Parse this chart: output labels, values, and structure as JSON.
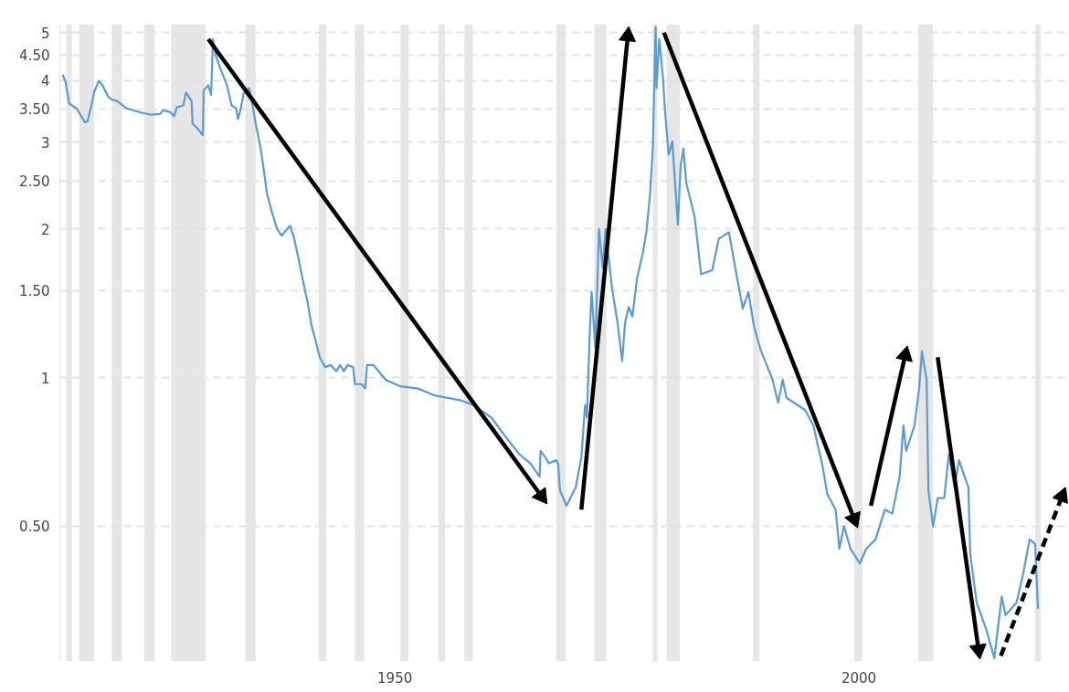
{
  "chart_data": {
    "type": "line",
    "log": "y",
    "grid": "y",
    "line_style": "solid",
    "marker": "none",
    "xlim": [
      1913.9,
      2022.5
    ],
    "ylim": [
      0.266,
      5.2
    ],
    "xticks": [
      1950,
      2000
    ],
    "yticks": [
      {
        "value": 0.5,
        "label": "0.50"
      },
      1,
      {
        "value": 1.5,
        "label": "1.50"
      },
      2,
      {
        "value": 2.5,
        "label": "2.50"
      },
      3,
      {
        "value": 3.5,
        "label": "3.50"
      },
      4,
      {
        "value": 4.5,
        "label": "4.50"
      },
      5
    ],
    "x": [
      1914.2,
      1914.5,
      1914.9,
      1915.2,
      1915.7,
      1916.1,
      1916.6,
      1916.9,
      1917.3,
      1917.6,
      1918.1,
      1918.5,
      1919.1,
      1919.5,
      1920.1,
      1921.1,
      1921.8,
      1922.7,
      1923.7,
      1924.7,
      1925.0,
      1925.8,
      1926.2,
      1926.5,
      1927.2,
      1927.5,
      1928.1,
      1928.2,
      1928.7,
      1929.3,
      1929.4,
      1929.9,
      1930.2,
      1930.4,
      1930.7,
      1931.3,
      1931.9,
      1932.4,
      1932.9,
      1933.1,
      1933.4,
      1933.7,
      1934.3,
      1934.6,
      1935.0,
      1935.5,
      1935.8,
      1936.2,
      1936.7,
      1937.3,
      1937.8,
      1938.3,
      1938.7,
      1939.1,
      1939.6,
      1940.1,
      1940.6,
      1941.0,
      1941.5,
      1941.9,
      1942.5,
      1943.1,
      1943.7,
      1944.1,
      1944.5,
      1944.9,
      1945.5,
      1945.7,
      1946.4,
      1946.8,
      1947.0,
      1947.7,
      1949.0,
      1950.6,
      1952.5,
      1954.3,
      1957.0,
      1958.5,
      1960.4,
      1961.9,
      1963.4,
      1964.6,
      1965.6,
      1965.7,
      1966.2,
      1966.6,
      1967.4,
      1967.6,
      1967.8,
      1968.5,
      1969.5,
      1970.1,
      1970.5,
      1970.7,
      1971.0,
      1971.2,
      1971.6,
      1972.0,
      1972.4,
      1972.7,
      1973.4,
      1974.0,
      1974.5,
      1974.8,
      1975.2,
      1975.6,
      1976.1,
      1976.7,
      1977.1,
      1977.5,
      1977.8,
      1978.1,
      1978.2,
      1978.5,
      1978.9,
      1979.1,
      1979.5,
      1979.9,
      1980.5,
      1980.8,
      1981.1,
      1981.4,
      1982.3,
      1983.0,
      1984.2,
      1984.9,
      1986.0,
      1986.8,
      1987.5,
      1988.1,
      1988.7,
      1989.4,
      1990.7,
      1991.3,
      1991.8,
      1992.2,
      1994.2,
      1995.1,
      1996.1,
      1996.6,
      1997.5,
      1997.9,
      1998.4,
      1999.1,
      2000.1,
      2000.8,
      2001.8,
      2002.8,
      2003.6,
      2004.4,
      2004.8,
      2005.1,
      2006.0,
      2006.5,
      2006.8,
      2007.3,
      2007.5,
      2008.0,
      2008.5,
      2009.2,
      2009.7,
      2010.3,
      2010.8,
      2011.4,
      2011.8,
      2012.0,
      2012.7,
      2013.7,
      2014.6,
      2015.4,
      2015.8,
      2017.0,
      2017.7,
      2018.4,
      2019.0,
      2019.3
    ],
    "series": [
      {
        "color": "#5b9bd5",
        "values": [
          4.11,
          3.99,
          3.59,
          3.56,
          3.51,
          3.41,
          3.29,
          3.31,
          3.56,
          3.79,
          3.99,
          3.91,
          3.71,
          3.66,
          3.63,
          3.51,
          3.48,
          3.44,
          3.41,
          3.42,
          3.48,
          3.45,
          3.38,
          3.53,
          3.56,
          3.78,
          3.63,
          3.27,
          3.2,
          3.1,
          3.82,
          3.91,
          3.74,
          4.85,
          4.49,
          4.18,
          3.92,
          3.56,
          3.51,
          3.34,
          3.51,
          3.76,
          3.86,
          3.63,
          3.27,
          2.94,
          2.7,
          2.37,
          2.18,
          2.0,
          1.94,
          1.99,
          2.03,
          1.93,
          1.75,
          1.57,
          1.42,
          1.28,
          1.18,
          1.1,
          1.05,
          1.06,
          1.03,
          1.06,
          1.03,
          1.06,
          1.05,
          0.97,
          0.97,
          0.95,
          1.06,
          1.06,
          0.99,
          0.96,
          0.95,
          0.92,
          0.9,
          0.88,
          0.83,
          0.76,
          0.7,
          0.67,
          0.63,
          0.71,
          0.69,
          0.67,
          0.68,
          0.67,
          0.59,
          0.55,
          0.6,
          0.69,
          0.88,
          0.83,
          1.23,
          1.49,
          1.15,
          2.0,
          1.67,
          2.0,
          1.52,
          1.29,
          1.08,
          1.29,
          1.39,
          1.33,
          1.59,
          1.78,
          1.97,
          2.35,
          2.91,
          5.13,
          3.86,
          4.85,
          4.04,
          3.5,
          2.83,
          3.01,
          2.04,
          2.69,
          2.91,
          2.48,
          2.12,
          1.62,
          1.65,
          1.91,
          1.97,
          1.62,
          1.38,
          1.49,
          1.27,
          1.14,
          0.99,
          0.89,
          0.99,
          0.91,
          0.86,
          0.8,
          0.66,
          0.58,
          0.54,
          0.45,
          0.5,
          0.45,
          0.42,
          0.45,
          0.47,
          0.54,
          0.53,
          0.63,
          0.8,
          0.71,
          0.8,
          0.95,
          1.13,
          0.99,
          0.59,
          0.5,
          0.57,
          0.57,
          0.7,
          0.6,
          0.68,
          0.63,
          0.6,
          0.44,
          0.35,
          0.31,
          0.27,
          0.36,
          0.33,
          0.35,
          0.4,
          0.47,
          0.46,
          0.34
        ]
      },
      {
        "type": "line",
        "color": "#000000",
        "line_style": "solid",
        "marker": "triangle",
        "x": [
          1929.9,
          1965.8
        ],
        "values": [
          4.85,
          0.575
        ]
      },
      {
        "type": "line",
        "color": "#000000",
        "line_style": "solid",
        "marker": "triangle",
        "x": [
          1970.1,
          1975.1
        ],
        "values": [
          0.54,
          4.92
        ]
      },
      {
        "type": "line",
        "color": "#000000",
        "line_style": "solid",
        "marker": "triangle",
        "x": [
          1979.0,
          1999.5
        ],
        "values": [
          5.0,
          0.517
        ]
      },
      {
        "type": "line",
        "color": "#000000",
        "line_style": "solid",
        "marker": "triangle",
        "x": [
          2001.3,
          2005.0
        ],
        "values": [
          0.55,
          1.11
        ]
      },
      {
        "type": "line",
        "color": "#000000",
        "line_style": "solid",
        "marker": "triangle",
        "x": [
          2008.5,
          2012.9
        ],
        "values": [
          1.1,
          0.281
        ]
      },
      {
        "type": "line",
        "color": "#000000",
        "line_style": "dashed",
        "marker": "triangle",
        "x": [
          2015.3,
          2021.9
        ],
        "values": [
          0.273,
          0.575
        ]
      }
    ],
    "bands": [
      {
        "axis": "x",
        "from": 1914.6,
        "to": 1915.2,
        "color": "#e6e6e6"
      },
      {
        "axis": "x",
        "from": 1916.0,
        "to": 1917.6,
        "color": "#e6e6e6"
      },
      {
        "axis": "x",
        "from": 1919.5,
        "to": 1920.6,
        "color": "#e6e6e6"
      },
      {
        "axis": "x",
        "from": 1923.0,
        "to": 1924.1,
        "color": "#e6e6e6"
      },
      {
        "axis": "x",
        "from": 1925.9,
        "to": 1929.6,
        "color": "#e6e6e6"
      },
      {
        "axis": "x",
        "from": 1933.9,
        "to": 1935.0,
        "color": "#e6e6e6"
      },
      {
        "axis": "x",
        "from": 1941.8,
        "to": 1942.6,
        "color": "#e6e6e6"
      },
      {
        "axis": "x",
        "from": 1945.7,
        "to": 1946.7,
        "color": "#e6e6e6"
      },
      {
        "axis": "x",
        "from": 1950.6,
        "to": 1951.5,
        "color": "#e6e6e6"
      },
      {
        "axis": "x",
        "from": 1954.7,
        "to": 1955.4,
        "color": "#e6e6e6"
      },
      {
        "axis": "x",
        "from": 1957.5,
        "to": 1958.4,
        "color": "#e6e6e6"
      },
      {
        "axis": "x",
        "from": 1967.4,
        "to": 1968.4,
        "color": "#e6e6e6"
      },
      {
        "axis": "x",
        "from": 1971.5,
        "to": 1972.8,
        "color": "#e6e6e6"
      },
      {
        "axis": "x",
        "from": 1977.8,
        "to": 1978.3,
        "color": "#e6e6e6"
      },
      {
        "axis": "x",
        "from": 1979.3,
        "to": 1980.7,
        "color": "#e6e6e6"
      },
      {
        "axis": "x",
        "from": 1988.6,
        "to": 1989.3,
        "color": "#e6e6e6"
      },
      {
        "axis": "x",
        "from": 1999.5,
        "to": 2000.4,
        "color": "#e6e6e6"
      },
      {
        "axis": "x",
        "from": 2006.4,
        "to": 2008.0,
        "color": "#e6e6e6"
      },
      {
        "axis": "x",
        "from": 2019.0,
        "to": 2019.6,
        "color": "#e6e6e6"
      }
    ]
  }
}
